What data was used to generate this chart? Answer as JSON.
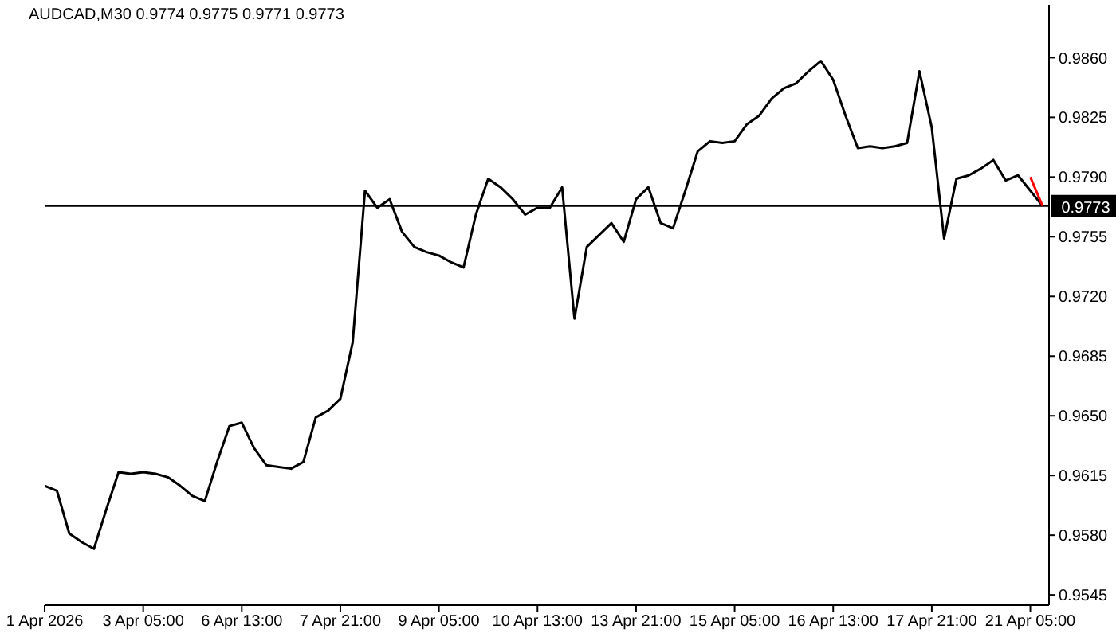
{
  "chart_data": {
    "type": "line",
    "title": "AUDCAD,M30  0.9774 0.9775 0.9771 0.9773",
    "categories": [
      "1 Apr 2026",
      null,
      null,
      null,
      null,
      null,
      null,
      null,
      "3 Apr 05:00",
      null,
      null,
      null,
      null,
      null,
      null,
      null,
      "6 Apr 13:00",
      null,
      null,
      null,
      null,
      null,
      null,
      null,
      "7 Apr 21:00",
      null,
      null,
      null,
      null,
      null,
      null,
      null,
      "9 Apr 05:00",
      null,
      null,
      null,
      null,
      null,
      null,
      null,
      "10 Apr 13:00",
      null,
      null,
      null,
      null,
      null,
      null,
      null,
      "13 Apr 21:00",
      null,
      null,
      null,
      null,
      null,
      null,
      null,
      "15 Apr 05:00",
      null,
      null,
      null,
      null,
      null,
      null,
      null,
      "16 Apr 13:00",
      null,
      null,
      null,
      null,
      null,
      null,
      null,
      "17 Apr 21:00",
      null,
      null,
      null,
      null,
      null,
      null,
      null,
      "21 Apr 05:00",
      null
    ],
    "series": [
      {
        "color": "#000000",
        "values": [
          0.9609,
          0.9606,
          0.9581,
          0.9576,
          0.9572,
          0.9595,
          0.9617,
          0.9616,
          0.9617,
          0.9616,
          0.9614,
          0.9609,
          0.9603,
          0.96,
          0.9623,
          0.9644,
          0.9646,
          0.9631,
          0.9621,
          0.962,
          0.9619,
          0.9623,
          0.9649,
          0.9653,
          0.966,
          0.9693,
          0.9782,
          0.9772,
          0.9777,
          0.9758,
          0.9749,
          0.9746,
          0.9744,
          0.974,
          0.9737,
          0.9768,
          0.9789,
          0.9784,
          0.9777,
          0.9768,
          0.9772,
          0.9772,
          0.9784,
          0.9707,
          0.9749,
          0.9756,
          0.9763,
          0.9752,
          0.9777,
          0.9784,
          0.9763,
          0.976,
          0.9782,
          0.9805,
          0.9811,
          0.981,
          0.9811,
          0.9821,
          0.9826,
          0.9836,
          0.9842,
          0.9845,
          0.9852,
          0.9858,
          0.9847,
          0.9826,
          0.9807,
          0.9808,
          0.9807,
          0.9808,
          0.981,
          0.9852,
          0.9819,
          0.9754,
          0.9789,
          0.9791,
          0.9795,
          0.98,
          0.9788,
          0.9791,
          0.9782,
          0.9773
        ]
      },
      {
        "color": "#ff0000",
        "values": [
          null,
          null,
          null,
          null,
          null,
          null,
          null,
          null,
          null,
          null,
          null,
          null,
          null,
          null,
          null,
          null,
          null,
          null,
          null,
          null,
          null,
          null,
          null,
          null,
          null,
          null,
          null,
          null,
          null,
          null,
          null,
          null,
          null,
          null,
          null,
          null,
          null,
          null,
          null,
          null,
          null,
          null,
          null,
          null,
          null,
          null,
          null,
          null,
          null,
          null,
          null,
          null,
          null,
          null,
          null,
          null,
          null,
          null,
          null,
          null,
          null,
          null,
          null,
          null,
          null,
          null,
          null,
          null,
          null,
          null,
          null,
          null,
          null,
          null,
          null,
          null,
          null,
          null,
          null,
          null,
          0.979,
          0.9773
        ]
      }
    ],
    "ylim": [
      0.9539,
      0.9891
    ],
    "yticks": [
      0.9545,
      {
        "value": 0.958,
        "label": "0.9580"
      },
      0.9615,
      {
        "value": 0.965,
        "label": "0.9650"
      },
      0.9685,
      {
        "value": 0.972,
        "label": "0.9720"
      },
      0.9755,
      {
        "value": 0.979,
        "label": "0.9790"
      },
      0.9825,
      {
        "value": 0.986,
        "label": "0.9860"
      }
    ],
    "ref_lines": [
      {
        "axis": "y",
        "value": 0.9773,
        "label": "0.9773",
        "color": "#000000"
      }
    ],
    "grid": false,
    "marker": "none",
    "line_style": "solid"
  }
}
